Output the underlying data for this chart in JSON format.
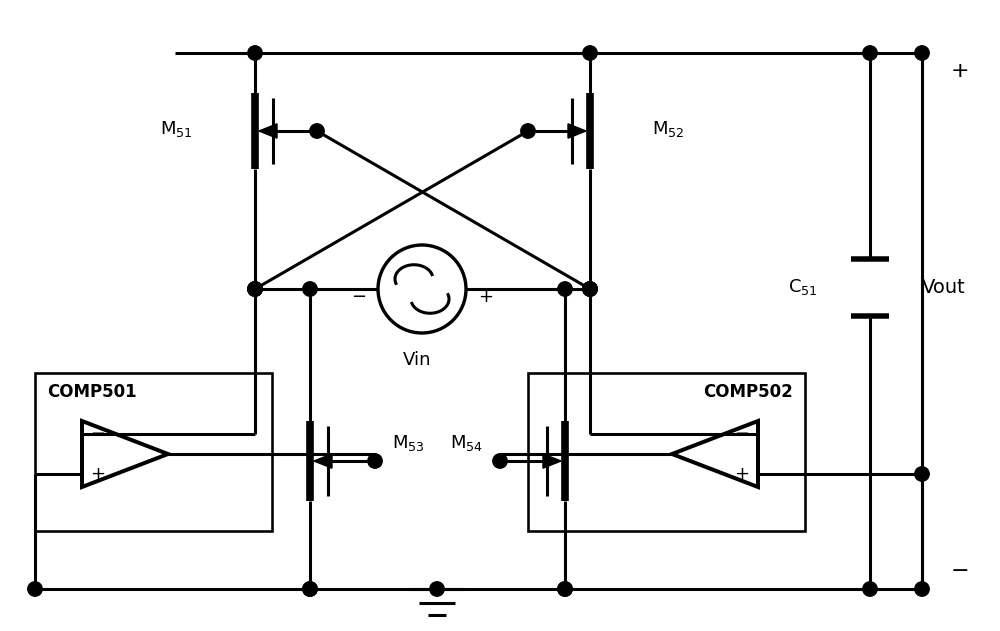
{
  "bg_color": "#ffffff",
  "line_color": "#000000",
  "lw": 2.2,
  "figsize": [
    10.0,
    6.31
  ],
  "dpi": 100,
  "xlim": [
    0,
    10
  ],
  "ylim": [
    0,
    6.31
  ]
}
